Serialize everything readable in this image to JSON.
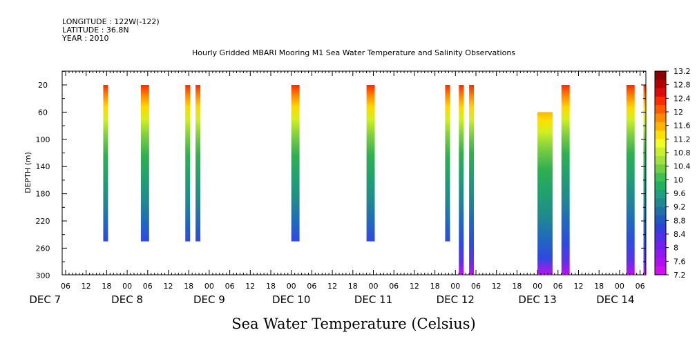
{
  "header": {
    "longitude": "LONGITUDE : 122W(-122)",
    "latitude": "LATITUDE : 36.8N",
    "year": "YEAR : 2010"
  },
  "chart_data": {
    "type": "heatmap",
    "title": "Hourly Gridded MBARI Mooring M1 Sea Water Temperature and Salinity Observations",
    "xlabel": "Sea Water Temperature (Celsius)",
    "ylabel": "DEPTH (m)",
    "x_unit": "hours since DEC 7 00:00",
    "xlim": [
      -18,
      170
    ],
    "ylim": [
      300,
      2
    ],
    "y_ticks": [
      20,
      60,
      100,
      140,
      180,
      220,
      260,
      300
    ],
    "x_tick_labels": [
      "06",
      "12",
      "18",
      "00",
      "06",
      "12",
      "18",
      "00",
      "06",
      "12",
      "18",
      "00",
      "06",
      "12",
      "18",
      "00",
      "06",
      "12",
      "18",
      "00",
      "06",
      "12",
      "18",
      "00",
      "06",
      "12",
      "18",
      "00",
      "06",
      "12",
      "18",
      "00",
      "06"
    ],
    "x_tick_hours": [
      6,
      12,
      18,
      24,
      30,
      36,
      42,
      48,
      54,
      60,
      66,
      72,
      78,
      84,
      90,
      96,
      102,
      108,
      114,
      120,
      126,
      132,
      138,
      144,
      150,
      156,
      162,
      168,
      174,
      180,
      186,
      192,
      198
    ],
    "day_labels": [
      {
        "label": "DEC  7",
        "hour": 0
      },
      {
        "label": "DEC  8",
        "hour": 24
      },
      {
        "label": "DEC  9",
        "hour": 48
      },
      {
        "label": "DEC 10",
        "hour": 72
      },
      {
        "label": "DEC 11",
        "hour": 96
      },
      {
        "label": "DEC 12",
        "hour": 120
      },
      {
        "label": "DEC 13",
        "hour": 144
      },
      {
        "label": "DEC 14",
        "hour": 164
      }
    ],
    "columns": [
      {
        "start": 17,
        "end": 18,
        "top_depth": 20,
        "bottom_depth": 250,
        "surface_temp": 11.6
      },
      {
        "start": 28,
        "end": 30,
        "top_depth": 20,
        "bottom_depth": 250,
        "surface_temp": 12.0
      },
      {
        "start": 41,
        "end": 42,
        "top_depth": 20,
        "bottom_depth": 250,
        "surface_temp": 12.0
      },
      {
        "start": 44,
        "end": 45,
        "top_depth": 20,
        "bottom_depth": 250,
        "surface_temp": 12.0
      },
      {
        "start": 72,
        "end": 74,
        "top_depth": 20,
        "bottom_depth": 250,
        "surface_temp": 12.0
      },
      {
        "start": 94,
        "end": 96,
        "top_depth": 20,
        "bottom_depth": 250,
        "surface_temp": 12.0
      },
      {
        "start": 117,
        "end": 118,
        "top_depth": 20,
        "bottom_depth": 250,
        "surface_temp": 12.0
      },
      {
        "start": 121,
        "end": 122,
        "top_depth": 20,
        "bottom_depth": 300,
        "surface_temp": 12.0
      },
      {
        "start": 124,
        "end": 125,
        "top_depth": 20,
        "bottom_depth": 300,
        "surface_temp": 12.0
      },
      {
        "start": 144,
        "end": 148,
        "top_depth": 60,
        "bottom_depth": 300,
        "surface_temp": 11.2
      },
      {
        "start": 151,
        "end": 153,
        "top_depth": 20,
        "bottom_depth": 300,
        "surface_temp": 12.0
      },
      {
        "start": 170,
        "end": 172,
        "top_depth": 20,
        "bottom_depth": 300,
        "surface_temp": 12.0
      },
      {
        "start": 175,
        "end": 176,
        "top_depth": 20,
        "bottom_depth": 300,
        "surface_temp": 12.0
      }
    ],
    "colorbar": {
      "levels": [
        "13.2",
        "12.8",
        "12.4",
        "12",
        "11.6",
        "11.2",
        "10.8",
        "10.4",
        "10",
        "9.6",
        "9.2",
        "8.8",
        "8.4",
        "8",
        "7.6",
        "7.2"
      ],
      "colors": [
        "#8b0000",
        "#b40000",
        "#dc0a0a",
        "#ff2a00",
        "#ff5a00",
        "#ff8a00",
        "#ffb400",
        "#ffe000",
        "#f0ff20",
        "#c8f030",
        "#a0e040",
        "#70d040",
        "#40c050",
        "#20b060",
        "#20a080",
        "#208890",
        "#2070a8",
        "#2058c0",
        "#3040d8",
        "#5030e8",
        "#7020f0",
        "#9018f0",
        "#b010f0",
        "#d010f0"
      ]
    }
  }
}
